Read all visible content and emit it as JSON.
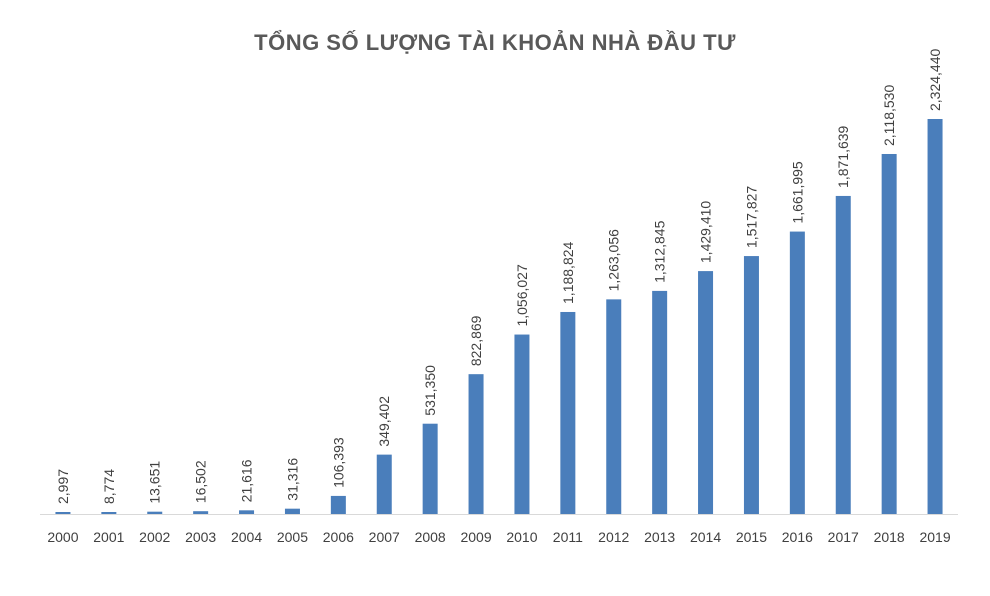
{
  "chart_data": {
    "type": "bar",
    "title": "TỔNG SỐ LƯỢNG TÀI KHOẢN NHÀ ĐẦU TƯ",
    "categories": [
      "2000",
      "2001",
      "2002",
      "2003",
      "2004",
      "2005",
      "2006",
      "2007",
      "2008",
      "2009",
      "2010",
      "2011",
      "2012",
      "2013",
      "2014",
      "2015",
      "2016",
      "2017",
      "2018",
      "2019"
    ],
    "values": [
      2997,
      8774,
      13651,
      16502,
      21616,
      31316,
      106393,
      349402,
      531350,
      822869,
      1056027,
      1188824,
      1263056,
      1312845,
      1429410,
      1517827,
      1661995,
      1871639,
      2118530,
      2324440
    ],
    "value_labels": [
      "2,997",
      "8,774",
      "13,651",
      "16,502",
      "21,616",
      "31,316",
      "106,393",
      "349,402",
      "531,350",
      "822,869",
      "1,056,027",
      "1,188,824",
      "1,263,056",
      "1,312,845",
      "1,429,410",
      "1,517,827",
      "1,661,995",
      "1,871,639",
      "2,118,530",
      "2,324,440"
    ],
    "xlabel": "",
    "ylabel": "",
    "ylim": [
      0,
      2324440
    ],
    "grid": false,
    "legend": "none",
    "bar_color": "#4A7EBB"
  }
}
